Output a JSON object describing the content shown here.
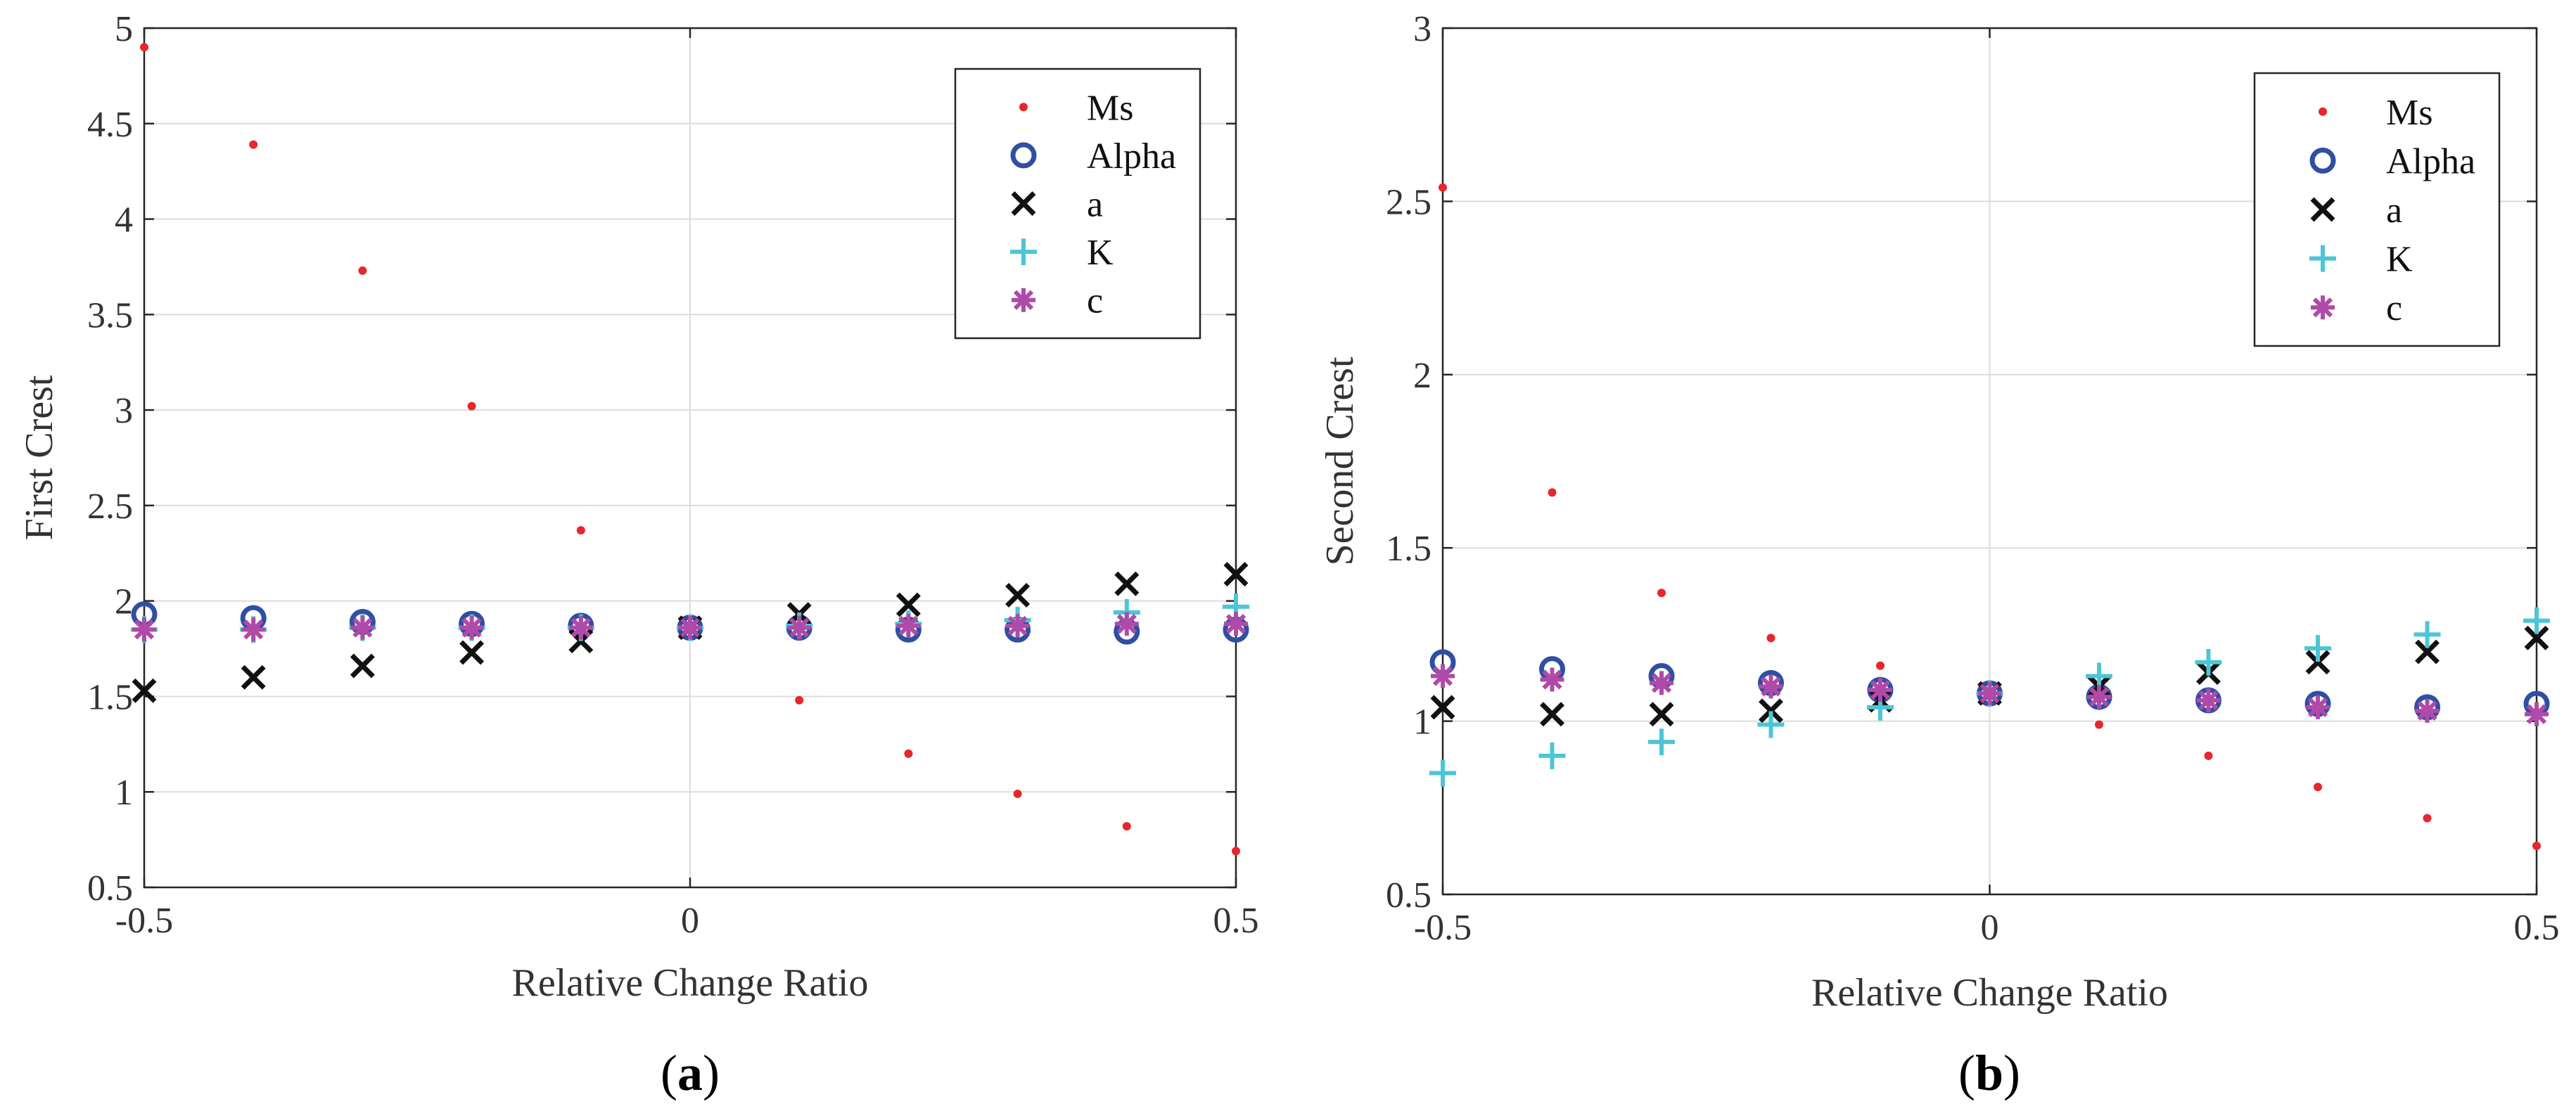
{
  "chart_data": [
    {
      "type": "scatter",
      "panel_label": {
        "open": "(",
        "letter": "a",
        "close": ")"
      },
      "xlabel": "Relative Change Ratio",
      "ylabel": "First Crest",
      "xlim": [
        -0.5,
        0.5
      ],
      "ylim": [
        0.5,
        5
      ],
      "xticks": [
        -0.5,
        0,
        0.5
      ],
      "xtick_labels": [
        "-0.5",
        "0",
        "0.5"
      ],
      "yticks": [
        0.5,
        1,
        1.5,
        2,
        2.5,
        3,
        3.5,
        4,
        4.5,
        5
      ],
      "ytick_labels": [
        "0.5",
        "1",
        "1.5",
        "2",
        "2.5",
        "3",
        "3.5",
        "4",
        "4.5",
        "5"
      ],
      "grid": true,
      "legend_position": "top-right",
      "x": [
        -0.5,
        -0.4,
        -0.3,
        -0.2,
        -0.1,
        0,
        0.1,
        0.2,
        0.3,
        0.4,
        0.5
      ],
      "series": [
        {
          "name": "Ms",
          "marker": "dot",
          "color": "#e8262b",
          "values": [
            4.9,
            4.39,
            3.73,
            3.02,
            2.37,
            1.86,
            1.48,
            1.2,
            0.99,
            0.82,
            0.69
          ]
        },
        {
          "name": "Alpha",
          "marker": "circle",
          "color": "#2e4fa3",
          "values": [
            1.93,
            1.91,
            1.89,
            1.88,
            1.87,
            1.86,
            1.86,
            1.85,
            1.85,
            1.84,
            1.85
          ]
        },
        {
          "name": "a",
          "marker": "x",
          "color": "#111111",
          "values": [
            1.53,
            1.6,
            1.66,
            1.73,
            1.79,
            1.86,
            1.93,
            1.98,
            2.03,
            2.09,
            2.14
          ]
        },
        {
          "name": "K",
          "marker": "plus",
          "color": "#4cc6d6",
          "values": [
            1.85,
            1.85,
            1.86,
            1.86,
            1.86,
            1.86,
            1.87,
            1.88,
            1.9,
            1.94,
            1.97
          ]
        },
        {
          "name": "c",
          "marker": "asterisk",
          "color": "#b04aa8",
          "values": [
            1.85,
            1.85,
            1.86,
            1.86,
            1.86,
            1.86,
            1.86,
            1.87,
            1.87,
            1.88,
            1.88
          ]
        }
      ]
    },
    {
      "type": "scatter",
      "panel_label": {
        "open": "(",
        "letter": "b",
        "close": ")"
      },
      "xlabel": "Relative Change Ratio",
      "ylabel": "Second Crest",
      "xlim": [
        -0.5,
        0.5
      ],
      "ylim": [
        0.5,
        3
      ],
      "xticks": [
        -0.5,
        0,
        0.5
      ],
      "xtick_labels": [
        "-0.5",
        "0",
        "0.5"
      ],
      "yticks": [
        0.5,
        1,
        1.5,
        2,
        2.5,
        3
      ],
      "ytick_labels": [
        "0.5",
        "1",
        "1.5",
        "2",
        "2.5",
        "3"
      ],
      "grid": true,
      "legend_position": "top-right",
      "x": [
        -0.5,
        -0.4,
        -0.3,
        -0.2,
        -0.1,
        0,
        0.1,
        0.2,
        0.3,
        0.4,
        0.5
      ],
      "series": [
        {
          "name": "Ms",
          "marker": "dot",
          "color": "#e8262b",
          "values": [
            2.54,
            1.66,
            1.37,
            1.24,
            1.16,
            1.08,
            0.99,
            0.9,
            0.81,
            0.72,
            0.64
          ]
        },
        {
          "name": "Alpha",
          "marker": "circle",
          "color": "#2e4fa3",
          "values": [
            1.17,
            1.15,
            1.13,
            1.11,
            1.09,
            1.08,
            1.07,
            1.06,
            1.05,
            1.04,
            1.05
          ]
        },
        {
          "name": "a",
          "marker": "x",
          "color": "#111111",
          "values": [
            1.04,
            1.02,
            1.02,
            1.03,
            1.06,
            1.08,
            1.1,
            1.14,
            1.17,
            1.2,
            1.24
          ]
        },
        {
          "name": "K",
          "marker": "plus",
          "color": "#4cc6d6",
          "values": [
            0.85,
            0.9,
            0.94,
            0.99,
            1.04,
            1.08,
            1.13,
            1.17,
            1.21,
            1.25,
            1.29
          ]
        },
        {
          "name": "c",
          "marker": "asterisk",
          "color": "#b04aa8",
          "values": [
            1.13,
            1.12,
            1.11,
            1.1,
            1.09,
            1.08,
            1.07,
            1.06,
            1.04,
            1.03,
            1.02
          ]
        }
      ]
    }
  ]
}
